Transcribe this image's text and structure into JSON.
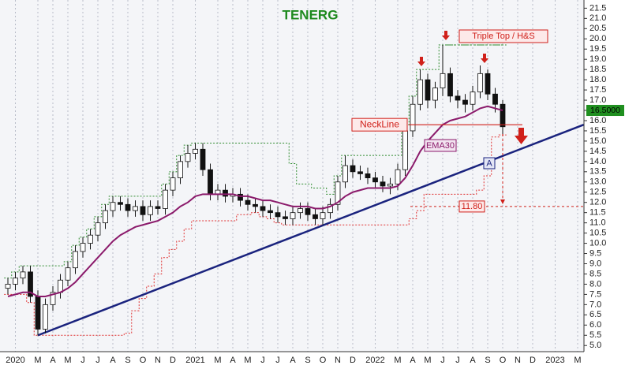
{
  "chart_data": {
    "type": "candlestick",
    "title": "TENERG",
    "x_labels": [
      "2020",
      "M",
      "A",
      "M",
      "J",
      "J",
      "A",
      "S",
      "O",
      "N",
      "D",
      "2021",
      "M",
      "A",
      "M",
      "J",
      "J",
      "A",
      "S",
      "O",
      "N",
      "D",
      "2022",
      "M",
      "A",
      "M",
      "J",
      "J",
      "A",
      "S",
      "O",
      "N",
      "D",
      "2023",
      "M"
    ],
    "open": [
      7.8,
      8.0,
      8.3,
      8.6,
      7.4,
      5.8,
      7.0,
      7.6,
      8.2,
      8.8,
      9.6,
      10.0,
      10.4,
      11.0,
      11.6,
      12.0,
      11.9,
      11.6,
      11.8,
      11.4,
      11.8,
      11.7,
      12.6,
      13.2,
      14.0,
      14.4,
      14.6,
      13.6,
      12.4,
      12.6,
      12.3,
      12.4,
      12.1,
      11.9,
      11.8,
      11.6,
      11.5,
      11.3,
      11.2,
      11.5,
      11.7,
      11.4,
      11.2,
      11.5,
      11.9,
      13.0,
      13.8,
      13.5,
      13.4,
      13.2,
      13.0,
      12.8,
      12.9,
      13.6,
      15.5,
      16.8,
      18.0,
      17.0,
      17.6,
      18.3,
      17.2,
      17.0,
      16.8,
      17.4,
      18.3,
      17.3,
      16.8
    ],
    "high": [
      8.3,
      8.6,
      8.9,
      8.9,
      7.7,
      7.3,
      7.9,
      8.5,
      9.1,
      9.9,
      10.3,
      10.7,
      11.3,
      11.9,
      12.3,
      12.3,
      12.2,
      12.1,
      12.1,
      12.1,
      12.1,
      12.9,
      13.5,
      14.3,
      14.8,
      14.9,
      14.9,
      13.9,
      12.9,
      12.9,
      12.7,
      12.7,
      12.4,
      12.2,
      12.1,
      11.9,
      11.8,
      11.6,
      11.8,
      12.0,
      12.0,
      11.7,
      11.8,
      12.2,
      13.3,
      14.3,
      14.1,
      13.8,
      13.7,
      13.5,
      13.3,
      13.2,
      13.9,
      15.8,
      17.2,
      18.5,
      18.3,
      17.9,
      19.7,
      18.6,
      17.5,
      17.3,
      17.7,
      18.7,
      18.5,
      17.6,
      17.0
    ],
    "low": [
      7.5,
      7.7,
      8.0,
      7.1,
      5.5,
      5.6,
      6.7,
      7.3,
      7.9,
      8.5,
      9.3,
      9.7,
      10.1,
      10.7,
      11.3,
      11.6,
      11.3,
      11.3,
      11.1,
      11.1,
      11.4,
      11.4,
      12.3,
      12.9,
      13.7,
      14.1,
      13.3,
      12.1,
      12.1,
      12.0,
      12.0,
      11.8,
      11.6,
      11.5,
      11.3,
      11.2,
      11.0,
      10.9,
      10.9,
      11.2,
      11.1,
      10.9,
      10.9,
      11.2,
      11.6,
      12.7,
      13.2,
      13.1,
      12.9,
      12.7,
      12.5,
      12.4,
      12.6,
      13.3,
      15.2,
      16.5,
      16.6,
      16.6,
      17.2,
      16.9,
      16.6,
      16.4,
      16.5,
      17.1,
      17.0,
      16.4,
      15.3
    ],
    "close": [
      8.0,
      8.3,
      8.6,
      7.4,
      5.8,
      7.0,
      7.6,
      8.2,
      8.8,
      9.6,
      10.0,
      10.4,
      11.0,
      11.6,
      12.0,
      11.9,
      11.6,
      11.8,
      11.4,
      11.8,
      11.7,
      12.6,
      13.2,
      14.0,
      14.4,
      14.6,
      13.6,
      12.4,
      12.6,
      12.3,
      12.4,
      12.1,
      11.9,
      11.8,
      11.6,
      11.5,
      11.3,
      11.2,
      11.5,
      11.7,
      11.4,
      11.2,
      11.5,
      11.9,
      13.0,
      13.8,
      13.5,
      13.4,
      13.2,
      13.0,
      12.8,
      12.9,
      13.6,
      15.5,
      16.8,
      18.0,
      17.0,
      17.6,
      18.3,
      17.2,
      17.0,
      16.8,
      17.4,
      18.3,
      17.3,
      16.8,
      15.7
    ],
    "ema": {
      "name": "EMA30",
      "color": "#8b1a6b",
      "values": [
        7.4,
        7.5,
        7.6,
        7.6,
        7.4,
        7.4,
        7.5,
        7.6,
        7.8,
        8.1,
        8.5,
        8.9,
        9.3,
        9.7,
        10.1,
        10.4,
        10.6,
        10.8,
        10.9,
        11.0,
        11.1,
        11.3,
        11.5,
        11.8,
        12.0,
        12.3,
        12.4,
        12.4,
        12.4,
        12.4,
        12.4,
        12.3,
        12.3,
        12.2,
        12.1,
        12.1,
        12.0,
        11.9,
        11.8,
        11.8,
        11.8,
        11.7,
        11.7,
        11.8,
        12.0,
        12.3,
        12.5,
        12.6,
        12.7,
        12.7,
        12.7,
        12.7,
        12.8,
        13.2,
        13.8,
        14.5,
        15.0,
        15.4,
        15.8,
        16.0,
        16.1,
        16.2,
        16.4,
        16.6,
        16.7,
        16.6,
        16.5
      ]
    },
    "upper_channel": {
      "color": "#2e8b2e",
      "values": [
        8.3,
        8.6,
        8.9,
        8.9,
        8.9,
        8.9,
        8.9,
        8.9,
        9.1,
        9.9,
        10.3,
        10.7,
        11.3,
        11.9,
        12.3,
        12.3,
        12.3,
        12.3,
        12.3,
        12.3,
        12.3,
        12.9,
        13.5,
        14.3,
        14.8,
        14.9,
        14.9,
        14.9,
        14.9,
        14.9,
        14.9,
        14.9,
        14.9,
        14.9,
        14.9,
        14.9,
        14.9,
        14.9,
        13.9,
        12.9,
        12.9,
        12.7,
        12.7,
        12.4,
        13.3,
        14.3,
        14.3,
        14.3,
        14.3,
        14.3,
        14.3,
        14.3,
        14.3,
        15.8,
        17.2,
        18.5,
        18.5,
        18.5,
        19.7,
        19.7,
        19.7,
        19.7,
        19.7,
        19.7,
        19.7,
        19.7,
        19.7
      ]
    },
    "lower_channel": {
      "color": "#e03030",
      "values": [
        7.5,
        7.5,
        7.5,
        7.1,
        5.5,
        5.5,
        5.5,
        5.5,
        5.5,
        5.5,
        5.5,
        5.5,
        5.5,
        5.5,
        5.5,
        5.5,
        5.6,
        6.7,
        7.3,
        7.9,
        8.5,
        9.3,
        9.7,
        10.1,
        10.7,
        11.1,
        11.1,
        11.1,
        11.1,
        11.1,
        11.1,
        11.4,
        11.4,
        11.5,
        11.3,
        11.2,
        11.0,
        10.9,
        10.9,
        10.9,
        10.9,
        10.9,
        10.9,
        10.9,
        10.9,
        10.9,
        10.9,
        10.9,
        10.9,
        10.9,
        10.9,
        10.9,
        10.9,
        10.9,
        11.2,
        11.6,
        12.4,
        12.4,
        12.4,
        12.4,
        12.4,
        12.4,
        12.4,
        12.6,
        13.3,
        15.2,
        15.3
      ]
    },
    "trendline": {
      "label": "A",
      "color": "#1a237e",
      "points": [
        [
          4,
          5.5
        ],
        [
          76.8,
          15.8
        ]
      ]
    },
    "neckline": {
      "value": 15.8,
      "label": "NeckLine"
    },
    "target": {
      "value": 11.8,
      "label": "11.80"
    },
    "pattern_label": "Triple Top / H&S",
    "last_price": {
      "value": 16.5,
      "label": "16.5000"
    },
    "ylim": [
      4.7,
      21.9
    ],
    "yticks": [
      {
        "value": 5,
        "label": "5.0"
      },
      5.5,
      {
        "value": 6,
        "label": "6.0"
      },
      6.5,
      {
        "value": 7,
        "label": "7.0"
      },
      7.5,
      {
        "value": 8,
        "label": "8.0"
      },
      8.5,
      {
        "value": 9,
        "label": "9.0"
      },
      9.5,
      {
        "value": 10,
        "label": "10.0"
      },
      10.5,
      {
        "value": 11,
        "label": "11.0"
      },
      11.5,
      {
        "value": 12,
        "label": "12.0"
      },
      12.5,
      {
        "value": 13,
        "label": "13.0"
      },
      13.5,
      {
        "value": 14,
        "label": "14.0"
      },
      14.5,
      {
        "value": 15,
        "label": "15.0"
      },
      15.5,
      {
        "value": 16,
        "label": "16.0"
      },
      16.5,
      {
        "value": 17,
        "label": "17.0"
      },
      17.5,
      {
        "value": 18,
        "label": "18.0"
      },
      18.5,
      {
        "value": 19,
        "label": "19.0"
      },
      19.5,
      {
        "value": 20,
        "label": "20.0"
      },
      20.5,
      {
        "value": 21,
        "label": "21.0"
      },
      21.5
    ],
    "grid": true
  }
}
